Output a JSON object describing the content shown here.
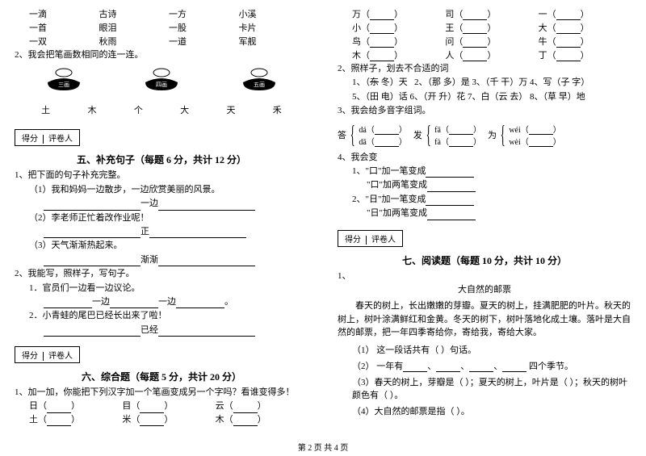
{
  "left": {
    "measure_words": {
      "r1": [
        "一滴",
        "古诗",
        "一方",
        "小溪"
      ],
      "r2": [
        "一首",
        "眼泪",
        "一股",
        "卡片"
      ],
      "r3": [
        "一双",
        "秋雨",
        "一道",
        "军舰"
      ]
    },
    "q2_text": "2、我会把笔画数相同的连一连。",
    "stamp_labels": [
      "三画",
      "四画",
      "五画"
    ],
    "chars_row": [
      "土",
      "木",
      "个",
      "大",
      "天",
      "禾"
    ],
    "score_labels": {
      "l1": "得分",
      "l2": "评卷人"
    },
    "section5_title": "五、补充句子（每题 6 分，共计 12 分）",
    "s5_q1": "1、把下面的句子补充完整。",
    "s5_q1_1": "（1）我和妈妈一边散步，一边欣赏美丽的风景。",
    "s5_q1_1b": "一边",
    "s5_q1_2": "（2）李老师正忙着改作业呢！",
    "s5_q1_2b": "正",
    "s5_q1_3": "（3）天气渐渐热起来。",
    "s5_q1_3b": "渐渐",
    "s5_q2": "2、我能写，照样子，写句子。",
    "s5_q2_1": "1．官员们一边看一边议论。",
    "s5_q2_1b_a": "一边",
    "s5_q2_1b_b": "一边",
    "s5_q2_2": "2．小青蛙的尾巴已经长出来了啦！",
    "s5_q2_2b": "已经",
    "section6_title": "六、综合题（每题 5 分，共计 20 分）",
    "s6_q1": "1、加一加，你能把下列汉字加一个笔画变成另一个字吗？看谁变得多！",
    "s6_chars": [
      "日（",
      "）",
      "目（",
      "）",
      "云（",
      "）"
    ],
    "s6_chars2": [
      "土（",
      "）",
      "米（",
      "）",
      "木（",
      "）"
    ]
  },
  "right": {
    "top_rows": [
      [
        "万（",
        "）",
        "司（",
        "）",
        "一（",
        "）"
      ],
      [
        "小（",
        "）",
        "王（",
        "）",
        "大（",
        "）"
      ],
      [
        "鸟（",
        "）",
        "问（",
        "）",
        "牛（",
        "）"
      ],
      [
        "木（",
        "）",
        "人（",
        "）",
        "丁（",
        "）"
      ]
    ],
    "s6_q2": "2、照样子，划去不合适的词",
    "s6_q2_ex_1": "1、（",
    "s6_q2_ex_1b": "东",
    "s6_q2_ex_1c": " 冬）天",
    "s6_q2_items": "2、（那 多）是    3、（千 干）万    4、写（子 字）",
    "s6_q2_line2": "5、（田 电）话    6、（开 升）花    7、白（云 去）    8、（草 早）地",
    "s6_q3": "3、我会给多音字组词。",
    "brace_groups": [
      {
        "label": "答",
        "items": [
          {
            "py": "dá（",
            "end": "）"
          },
          {
            "py": "dā（",
            "end": "）"
          }
        ]
      },
      {
        "label": "发",
        "items": [
          {
            "py": "fā（",
            "end": "）"
          },
          {
            "py": "fà（",
            "end": "）"
          }
        ]
      },
      {
        "label": "为",
        "items": [
          {
            "py": "wéi（",
            "end": "）"
          },
          {
            "py": "wèi（",
            "end": "）"
          }
        ]
      }
    ],
    "s6_q4": "4、我会变",
    "s6_q4_1a": "1、\"口\"加一笔变成",
    "s6_q4_1b": "\"口\"加两笔变成",
    "s6_q4_2a": "2、\"日\"加一笔变成",
    "s6_q4_2b": "\"日\"加两笔变成",
    "score_labels": {
      "l1": "得分",
      "l2": "评卷人"
    },
    "section7_title": "七、阅读题（每题 10 分，共计 10 分）",
    "s7_q1": "1、",
    "s7_title": "大自然的邮票",
    "s7_passage": "春天的树上，长出嫩嫩的芽瓣。夏天的树上，挂满肥肥的叶片。秋天的树上，树叶涂满鲜红和金黄。冬天的树下，树叶落地化成土壤。落叶是大自然的邮票，把一年四季寄给你，寄给我，寄给大家。",
    "s7_q1_1": "（1）  这一段话共有（    ）句话。",
    "s7_q1_2a": "（2）  一年有",
    "s7_q1_2b": "四个季节。",
    "s7_q1_3": "（3）春天的树上，芽瓣是（            ）；夏天的树上，叶片是（            ）；秋天的树叶颜色有（            ）。",
    "s7_q1_4": "（4）大自然的邮票是指（            ）。"
  },
  "footer": "第 2 页 共 4 页"
}
